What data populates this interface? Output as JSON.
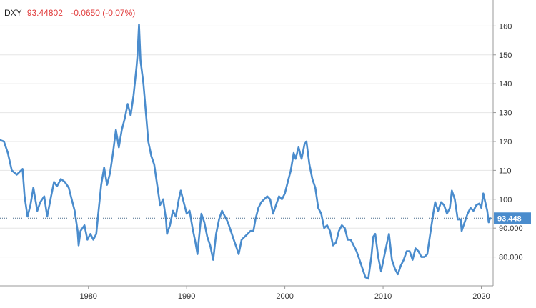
{
  "header": {
    "symbol": "DXY",
    "price": "93.44802",
    "change": "-0.0650 (-0.07%)",
    "change_color": "#e03a3a"
  },
  "chart_data": {
    "type": "line",
    "title": "",
    "xlabel": "",
    "ylabel": "",
    "x_ticks": [
      "1980",
      "1990",
      "2000",
      "2010",
      "2020"
    ],
    "y_ticks": [
      "80.000",
      "90.000",
      "100",
      "110",
      "120",
      "130",
      "140",
      "150",
      "160"
    ],
    "xlim": [
      1971,
      2021.2
    ],
    "ylim": [
      70,
      169
    ],
    "grid": "horizontal",
    "line_color": "#4a8ccd",
    "last_value": 93.448,
    "last_label": "93.448",
    "series": [
      {
        "values": [
          [
            1971.0,
            120.5
          ],
          [
            1971.4,
            120.0
          ],
          [
            1971.8,
            116.0
          ],
          [
            1972.2,
            110.0
          ],
          [
            1972.7,
            108.5
          ],
          [
            1973.0,
            109.5
          ],
          [
            1973.3,
            110.5
          ],
          [
            1973.5,
            101.0
          ],
          [
            1973.8,
            94.0
          ],
          [
            1974.1,
            98.0
          ],
          [
            1974.4,
            104.0
          ],
          [
            1974.8,
            96.0
          ],
          [
            1975.1,
            99.0
          ],
          [
            1975.5,
            101.0
          ],
          [
            1975.8,
            94.0
          ],
          [
            1976.2,
            101.0
          ],
          [
            1976.5,
            106.0
          ],
          [
            1976.8,
            104.5
          ],
          [
            1977.2,
            107.0
          ],
          [
            1977.6,
            106.0
          ],
          [
            1978.0,
            104.0
          ],
          [
            1978.3,
            100.0
          ],
          [
            1978.6,
            96.0
          ],
          [
            1978.9,
            89.0
          ],
          [
            1979.0,
            84.0
          ],
          [
            1979.2,
            89.0
          ],
          [
            1979.6,
            91.0
          ],
          [
            1979.9,
            86.0
          ],
          [
            1980.2,
            88.0
          ],
          [
            1980.5,
            86.0
          ],
          [
            1980.8,
            88.0
          ],
          [
            1981.0,
            95.0
          ],
          [
            1981.3,
            105.0
          ],
          [
            1981.6,
            111.0
          ],
          [
            1981.9,
            105.0
          ],
          [
            1982.2,
            109.0
          ],
          [
            1982.5,
            116.0
          ],
          [
            1982.8,
            124.0
          ],
          [
            1983.1,
            118.0
          ],
          [
            1983.4,
            124.0
          ],
          [
            1983.7,
            128.0
          ],
          [
            1984.0,
            133.0
          ],
          [
            1984.3,
            129.0
          ],
          [
            1984.6,
            136.0
          ],
          [
            1984.9,
            146.0
          ],
          [
            1985.0,
            150.0
          ],
          [
            1985.15,
            160.5
          ],
          [
            1985.3,
            148.0
          ],
          [
            1985.6,
            140.0
          ],
          [
            1985.9,
            128.0
          ],
          [
            1986.1,
            120.0
          ],
          [
            1986.4,
            115.0
          ],
          [
            1986.7,
            112.0
          ],
          [
            1987.0,
            105.0
          ],
          [
            1987.3,
            98.0
          ],
          [
            1987.6,
            100.0
          ],
          [
            1987.9,
            93.0
          ],
          [
            1988.0,
            88.0
          ],
          [
            1988.3,
            91.0
          ],
          [
            1988.6,
            96.0
          ],
          [
            1988.9,
            94.0
          ],
          [
            1989.2,
            100.0
          ],
          [
            1989.4,
            103.0
          ],
          [
            1989.7,
            99.0
          ],
          [
            1990.0,
            95.0
          ],
          [
            1990.3,
            96.0
          ],
          [
            1990.6,
            90.0
          ],
          [
            1990.9,
            85.0
          ],
          [
            1991.1,
            81.0
          ],
          [
            1991.3,
            88.0
          ],
          [
            1991.5,
            95.0
          ],
          [
            1991.8,
            92.0
          ],
          [
            1992.1,
            87.0
          ],
          [
            1992.4,
            84.0
          ],
          [
            1992.7,
            79.0
          ],
          [
            1993.0,
            88.0
          ],
          [
            1993.3,
            93.0
          ],
          [
            1993.6,
            96.0
          ],
          [
            1993.9,
            94.0
          ],
          [
            1994.2,
            92.0
          ],
          [
            1994.5,
            89.0
          ],
          [
            1994.8,
            86.0
          ],
          [
            1995.0,
            84.0
          ],
          [
            1995.3,
            81.0
          ],
          [
            1995.6,
            86.0
          ],
          [
            1995.9,
            87.0
          ],
          [
            1996.2,
            88.0
          ],
          [
            1996.5,
            89.0
          ],
          [
            1996.8,
            89.0
          ],
          [
            1997.0,
            93.0
          ],
          [
            1997.3,
            97.0
          ],
          [
            1997.6,
            99.0
          ],
          [
            1997.9,
            100.0
          ],
          [
            1998.2,
            101.0
          ],
          [
            1998.5,
            100.0
          ],
          [
            1998.8,
            95.0
          ],
          [
            1999.1,
            98.0
          ],
          [
            1999.4,
            101.0
          ],
          [
            1999.7,
            100.0
          ],
          [
            2000.0,
            102.0
          ],
          [
            2000.3,
            106.0
          ],
          [
            2000.6,
            110.0
          ],
          [
            2000.9,
            116.0
          ],
          [
            2001.1,
            114.0
          ],
          [
            2001.4,
            118.0
          ],
          [
            2001.7,
            114.0
          ],
          [
            2002.0,
            119.0
          ],
          [
            2002.2,
            120.0
          ],
          [
            2002.5,
            112.0
          ],
          [
            2002.8,
            107.0
          ],
          [
            2003.1,
            104.0
          ],
          [
            2003.4,
            97.0
          ],
          [
            2003.7,
            95.0
          ],
          [
            2004.0,
            90.0
          ],
          [
            2004.3,
            91.0
          ],
          [
            2004.6,
            89.0
          ],
          [
            2004.9,
            84.0
          ],
          [
            2005.2,
            85.0
          ],
          [
            2005.5,
            89.0
          ],
          [
            2005.8,
            91.0
          ],
          [
            2006.1,
            90.0
          ],
          [
            2006.4,
            86.0
          ],
          [
            2006.7,
            86.0
          ],
          [
            2007.0,
            84.0
          ],
          [
            2007.3,
            82.0
          ],
          [
            2007.6,
            79.0
          ],
          [
            2007.9,
            76.0
          ],
          [
            2008.2,
            73.0
          ],
          [
            2008.5,
            72.5
          ],
          [
            2008.8,
            80.0
          ],
          [
            2009.0,
            87.0
          ],
          [
            2009.2,
            88.0
          ],
          [
            2009.5,
            80.0
          ],
          [
            2009.8,
            75.0
          ],
          [
            2010.1,
            80.0
          ],
          [
            2010.4,
            85.0
          ],
          [
            2010.6,
            88.0
          ],
          [
            2010.9,
            79.0
          ],
          [
            2011.2,
            76.0
          ],
          [
            2011.5,
            74.0
          ],
          [
            2011.8,
            77.0
          ],
          [
            2012.1,
            79.0
          ],
          [
            2012.4,
            82.0
          ],
          [
            2012.7,
            82.0
          ],
          [
            2013.0,
            79.0
          ],
          [
            2013.3,
            83.0
          ],
          [
            2013.6,
            82.0
          ],
          [
            2013.9,
            80.0
          ],
          [
            2014.2,
            80.0
          ],
          [
            2014.5,
            81.0
          ],
          [
            2014.8,
            88.0
          ],
          [
            2015.1,
            95.0
          ],
          [
            2015.3,
            99.0
          ],
          [
            2015.6,
            96.0
          ],
          [
            2015.9,
            99.0
          ],
          [
            2016.2,
            98.0
          ],
          [
            2016.5,
            95.0
          ],
          [
            2016.8,
            97.0
          ],
          [
            2017.0,
            103.0
          ],
          [
            2017.3,
            100.0
          ],
          [
            2017.6,
            93.0
          ],
          [
            2017.9,
            93.0
          ],
          [
            2018.0,
            89.0
          ],
          [
            2018.3,
            92.0
          ],
          [
            2018.6,
            95.0
          ],
          [
            2018.9,
            97.0
          ],
          [
            2019.2,
            96.0
          ],
          [
            2019.5,
            98.0
          ],
          [
            2019.8,
            98.5
          ],
          [
            2020.0,
            97.0
          ],
          [
            2020.2,
            102.0
          ],
          [
            2020.4,
            99.0
          ],
          [
            2020.6,
            96.0
          ],
          [
            2020.75,
            92.0
          ],
          [
            2020.9,
            93.448
          ]
        ]
      }
    ]
  }
}
